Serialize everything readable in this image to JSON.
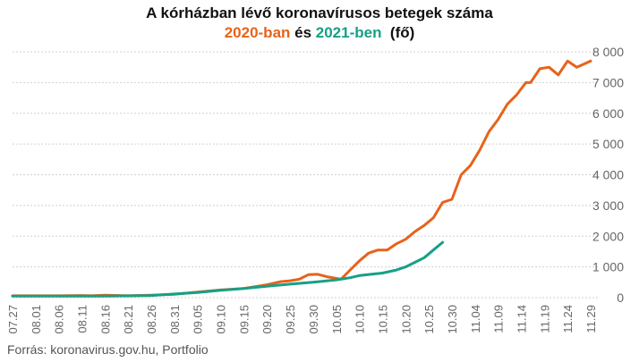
{
  "header": {
    "title": "A kórházban lévő koronavírusos betegek száma",
    "subtitle_a": "2020-ban",
    "subtitle_mid": " és ",
    "subtitle_b": "2021-ben",
    "subtitle_unit": "  (fő)"
  },
  "footer": {
    "source": "Forrás: koronavirus.gov.hu, Portfolio"
  },
  "colors": {
    "series_2020": "#e8621a",
    "series_2021": "#16a085",
    "grid": "#d0d0d0",
    "text": "#666666"
  },
  "chart_data": {
    "type": "line",
    "title": "A kórházban lévő koronavírusos betegek száma",
    "subtitle": "2020-ban és 2021-ben (fő)",
    "xlabel": "",
    "ylabel": "",
    "x_unit": "days",
    "x_tick_labels": [
      "07.27",
      "08.01",
      "08.06",
      "08.11",
      "08.16",
      "08.21",
      "08.26",
      "08.31",
      "09.05",
      "09.10",
      "09.15",
      "09.20",
      "09.25",
      "09.30",
      "10.05",
      "10.10",
      "10.15",
      "10.20",
      "10.25",
      "10.30",
      "11.04",
      "11.09",
      "11.14",
      "11.19",
      "11.24",
      "11.29"
    ],
    "y_ticks": [
      0,
      1000,
      2000,
      3000,
      4000,
      5000,
      6000,
      7000,
      8000
    ],
    "y_tick_labels": [
      "0",
      "1 000",
      "2 000",
      "3 000",
      "4 000",
      "5 000",
      "6 000",
      "7 000",
      "8 000"
    ],
    "ylim": [
      0,
      8000
    ],
    "grid": true,
    "legend": "in subtitle",
    "series": [
      {
        "name": "2020-ban",
        "points": [
          [
            "07.27",
            60
          ],
          [
            "08.01",
            60
          ],
          [
            "08.06",
            60
          ],
          [
            "08.11",
            70
          ],
          [
            "08.13",
            60
          ],
          [
            "08.16",
            80
          ],
          [
            "08.21",
            60
          ],
          [
            "08.26",
            80
          ],
          [
            "08.31",
            110
          ],
          [
            "09.03",
            150
          ],
          [
            "09.05",
            180
          ],
          [
            "09.10",
            250
          ],
          [
            "09.15",
            300
          ],
          [
            "09.20",
            420
          ],
          [
            "09.23",
            520
          ],
          [
            "09.25",
            550
          ],
          [
            "09.27",
            600
          ],
          [
            "09.29",
            750
          ],
          [
            "10.01",
            760
          ],
          [
            "10.03",
            680
          ],
          [
            "10.06",
            600
          ],
          [
            "10.08",
            900
          ],
          [
            "10.10",
            1200
          ],
          [
            "10.12",
            1450
          ],
          [
            "10.14",
            1550
          ],
          [
            "10.16",
            1550
          ],
          [
            "10.18",
            1750
          ],
          [
            "10.20",
            1900
          ],
          [
            "10.22",
            2150
          ],
          [
            "10.24",
            2350
          ],
          [
            "10.26",
            2600
          ],
          [
            "10.28",
            3100
          ],
          [
            "10.30",
            3200
          ],
          [
            "11.01",
            4000
          ],
          [
            "11.03",
            4300
          ],
          [
            "11.05",
            4800
          ],
          [
            "11.07",
            5400
          ],
          [
            "11.09",
            5800
          ],
          [
            "11.11",
            6300
          ],
          [
            "11.13",
            6600
          ],
          [
            "11.15",
            7000
          ],
          [
            "11.16",
            7000
          ],
          [
            "11.18",
            7450
          ],
          [
            "11.20",
            7500
          ],
          [
            "11.22",
            7250
          ],
          [
            "11.24",
            7700
          ],
          [
            "11.26",
            7500
          ],
          [
            "11.29",
            7700
          ]
        ]
      },
      {
        "name": "2021-ben",
        "points": [
          [
            "07.27",
            50
          ],
          [
            "08.06",
            50
          ],
          [
            "08.16",
            50
          ],
          [
            "08.26",
            70
          ],
          [
            "08.31",
            120
          ],
          [
            "09.05",
            170
          ],
          [
            "09.10",
            240
          ],
          [
            "09.15",
            300
          ],
          [
            "09.20",
            370
          ],
          [
            "09.25",
            440
          ],
          [
            "09.30",
            500
          ],
          [
            "10.05",
            580
          ],
          [
            "10.08",
            650
          ],
          [
            "10.10",
            720
          ],
          [
            "10.15",
            800
          ],
          [
            "10.18",
            900
          ],
          [
            "10.20",
            1000
          ],
          [
            "10.22",
            1150
          ],
          [
            "10.24",
            1300
          ],
          [
            "10.26",
            1550
          ],
          [
            "10.28",
            1800
          ]
        ]
      }
    ]
  }
}
